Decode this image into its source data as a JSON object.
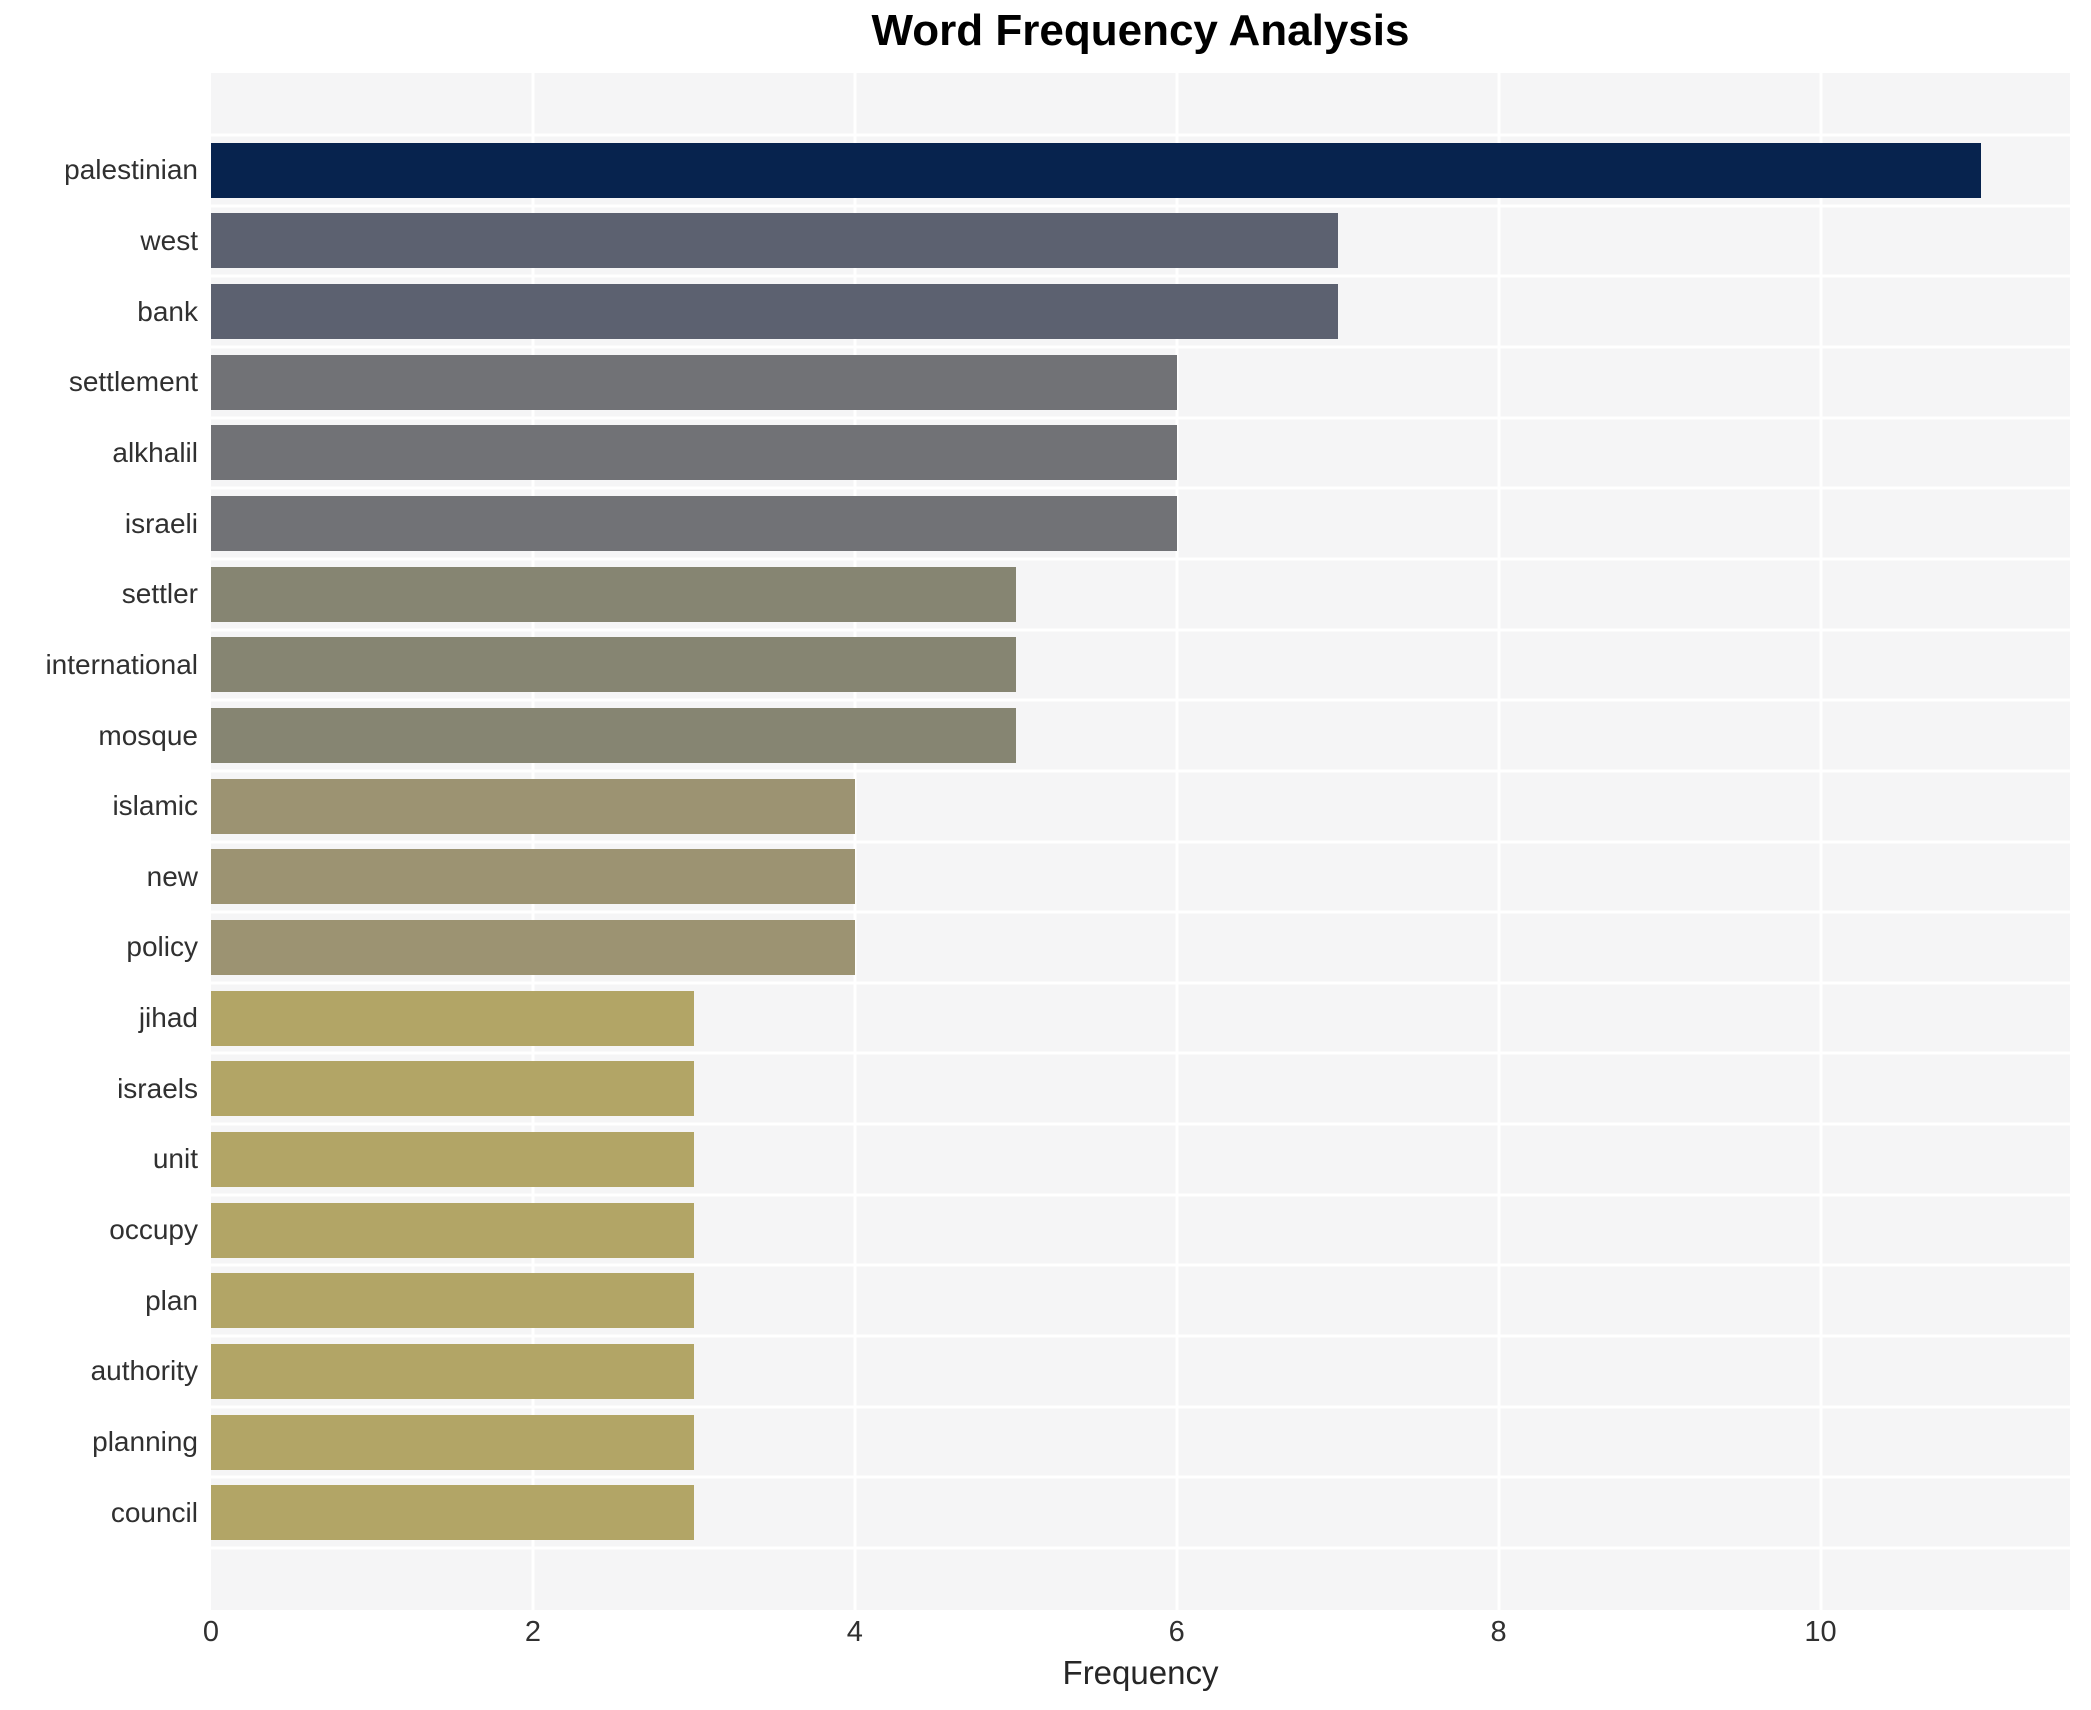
{
  "chart_data": {
    "type": "bar",
    "orientation": "horizontal",
    "title": "Word Frequency Analysis",
    "xlabel": "Frequency",
    "ylabel": "",
    "categories": [
      "palestinian",
      "west",
      "bank",
      "settlement",
      "alkhalil",
      "israeli",
      "settler",
      "international",
      "mosque",
      "islamic",
      "new",
      "policy",
      "jihad",
      "israels",
      "unit",
      "occupy",
      "plan",
      "authority",
      "planning",
      "council"
    ],
    "values": [
      11,
      7,
      7,
      6,
      6,
      6,
      5,
      5,
      5,
      4,
      4,
      4,
      3,
      3,
      3,
      3,
      3,
      3,
      3,
      3
    ],
    "bar_colors": [
      "#07234e",
      "#5c6170",
      "#5c6170",
      "#717276",
      "#717276",
      "#717276",
      "#868572",
      "#868572",
      "#868572",
      "#9c9372",
      "#9c9372",
      "#9c9372",
      "#b2a566",
      "#b2a566",
      "#b2a566",
      "#b2a566",
      "#b2a566",
      "#b2a566",
      "#b2a566",
      "#b2a566"
    ],
    "x_ticks": [
      0,
      2,
      4,
      6,
      8,
      10
    ],
    "xlim": [
      0,
      11.55
    ],
    "grid": "on",
    "legend": "none",
    "colors": {
      "panel_background": "#f5f5f6",
      "grid_line": "#ffffff",
      "value_11": "#07234e",
      "value_7": "#5c6170",
      "value_6": "#717276",
      "value_5": "#868572",
      "value_4": "#9c9372",
      "value_3": "#b2a566",
      "label_text": "#303030",
      "title_text": "#000000"
    }
  }
}
